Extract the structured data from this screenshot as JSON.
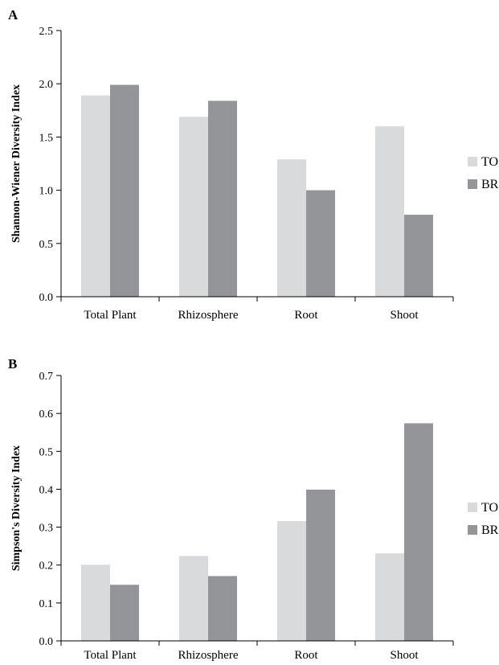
{
  "chart_data": [
    {
      "type": "bar",
      "panel_label": "A",
      "ylabel": "Shannon-Wiener Diversity Index",
      "xlabel": "",
      "categories": [
        "Total Plant",
        "Rhizosphere",
        "Root",
        "Shoot"
      ],
      "ylim": [
        0,
        2.5
      ],
      "yticks": [
        "0.0",
        "0.5",
        "1.0",
        "1.5",
        "2.0",
        "2.5"
      ],
      "series": [
        {
          "name": "TO",
          "color": "#d9dadb",
          "values": [
            1.89,
            1.69,
            1.29,
            1.6
          ]
        },
        {
          "name": "BR",
          "color": "#939598",
          "values": [
            1.99,
            1.84,
            1.0,
            0.77
          ]
        }
      ],
      "legend_position": "right",
      "grid": false
    },
    {
      "type": "bar",
      "panel_label": "B",
      "ylabel": "Simpson's Diversity Index",
      "xlabel": "",
      "categories": [
        "Total Plant",
        "Rhizosphere",
        "Root",
        "Shoot"
      ],
      "ylim": [
        0,
        0.7
      ],
      "yticks": [
        "0.0",
        "0.1",
        "0.2",
        "0.3",
        "0.4",
        "0.5",
        "0.6",
        "0.7"
      ],
      "series": [
        {
          "name": "TO",
          "color": "#d9dadb",
          "values": [
            0.201,
            0.224,
            0.316,
            0.231
          ]
        },
        {
          "name": "BR",
          "color": "#939598",
          "values": [
            0.148,
            0.171,
            0.399,
            0.574
          ]
        }
      ],
      "legend_position": "right",
      "grid": false
    }
  ]
}
